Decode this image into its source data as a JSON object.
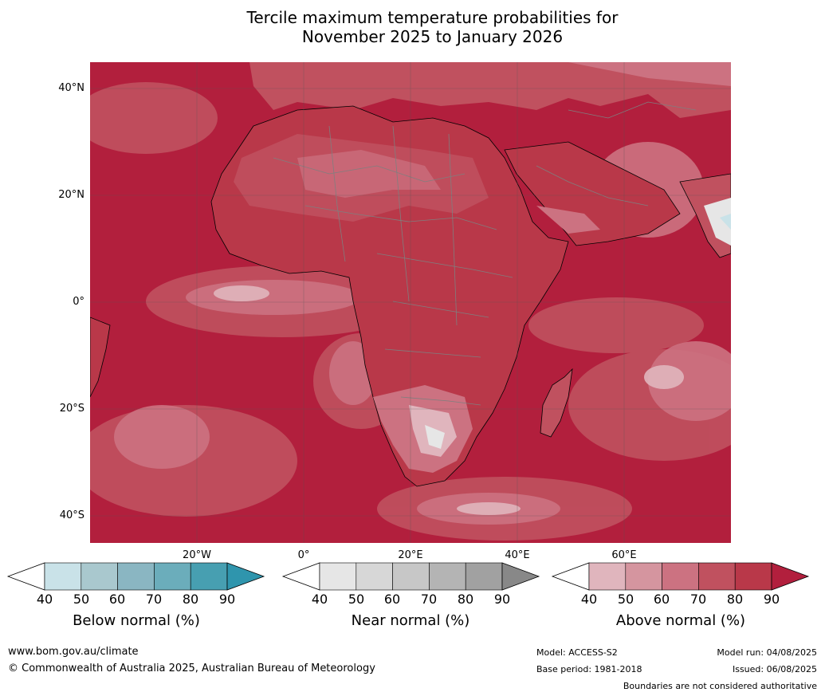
{
  "title_line1": "Tercile maximum temperature probabilities for",
  "title_line2": "November 2025 to January 2026",
  "lat_labels": [
    "40°N",
    "20°N",
    "0°",
    "20°S",
    "40°S"
  ],
  "lon_labels": [
    "20°W",
    "0°",
    "20°E",
    "40°E",
    "60°E"
  ],
  "legends": [
    {
      "title": "Below normal (%)",
      "ticks": [
        "40",
        "50",
        "60",
        "70",
        "80",
        "90"
      ],
      "colors": [
        "#c9e2e8",
        "#a9c8ce",
        "#8ab6c2",
        "#6badbb",
        "#479fb1",
        "#2f95ad"
      ]
    },
    {
      "title": "Near normal (%)",
      "ticks": [
        "40",
        "50",
        "60",
        "70",
        "80",
        "90"
      ],
      "colors": [
        "#e6e6e6",
        "#d7d7d7",
        "#c7c7c7",
        "#b4b4b4",
        "#a1a1a1",
        "#888888"
      ]
    },
    {
      "title": "Above normal (%)",
      "ticks": [
        "40",
        "50",
        "60",
        "70",
        "80",
        "90"
      ],
      "colors": [
        "#e0b5bd",
        "#d5959f",
        "#cc7281",
        "#c0515f",
        "#b93849",
        "#b21f3d"
      ]
    }
  ],
  "footer": {
    "website": "www.bom.gov.au/climate",
    "copyright": "© Commonwealth of Australia 2025, Australian Bureau of Meteorology",
    "model": "Model: ACCESS-S2",
    "base_period": "Base period: 1981-2018",
    "model_run": "Model run: 04/08/2025",
    "issued": "Issued: 06/08/2025",
    "disclaimer": "Boundaries are not considered authoritative"
  }
}
